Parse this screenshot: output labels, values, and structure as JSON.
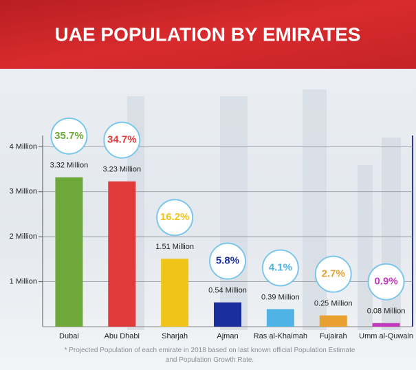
{
  "chart_data": {
    "type": "bar",
    "title": "UAE POPULATION BY EMIRATES",
    "categories": [
      "Dubai",
      "Abu Dhabi",
      "Sharjah",
      "Ajman",
      "Ras al-Khaimah",
      "Fujairah",
      "Umm al-Quwain"
    ],
    "values": [
      3.32,
      3.23,
      1.51,
      0.54,
      0.39,
      0.25,
      0.08
    ],
    "value_labels": [
      "3.32 Million",
      "3.23 Million",
      "1.51 Million",
      "0.54 Million",
      "0.39 Million",
      "0.25 Million",
      "0.08 Million"
    ],
    "colors": [
      "#6fa83a",
      "#e03a3a",
      "#f0c419",
      "#1a2f9c",
      "#4fb3e6",
      "#e8a030",
      "#c33bbd"
    ],
    "shares": {
      "values": [
        35.7,
        34.7,
        16.2,
        5.8,
        4.1,
        2.7,
        0.9
      ],
      "value_labels": [
        "35.7%",
        "34.7%",
        "16.2%",
        "5.8%",
        "4.1%",
        "2.7%",
        "0.9%"
      ]
    },
    "ylim": [
      0,
      4.25
    ],
    "yticks": [
      {
        "value": 1,
        "label": "1 Million"
      },
      {
        "value": 2,
        "label": "2 Million"
      },
      {
        "value": 3,
        "label": "3 Million"
      },
      {
        "value": 4,
        "label": "4 Million"
      }
    ],
    "grid": true,
    "footnote": "* Projected Population of each emirate in 2018 based on last known official Population Estimate and Population Growth Rate."
  }
}
